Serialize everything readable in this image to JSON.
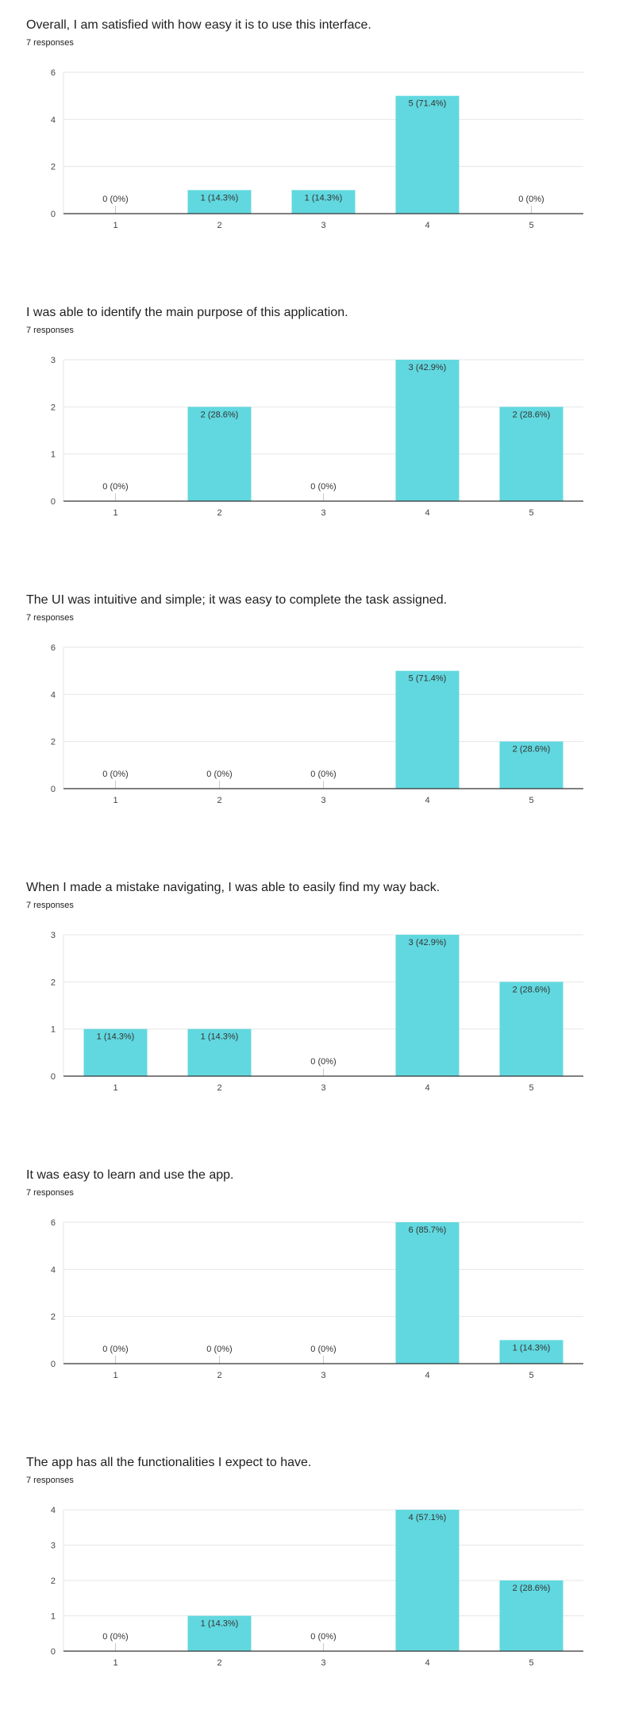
{
  "accent_color": "#61d8df",
  "charts": [
    {
      "title": "Overall, I am satisfied with how easy it is to use this interface.",
      "responses": "7 responses",
      "chart_data": {
        "type": "bar",
        "categories": [
          "1",
          "2",
          "3",
          "4",
          "5"
        ],
        "values": [
          0,
          1,
          1,
          5,
          0
        ],
        "labels": [
          "0 (0%)",
          "1 (14.3%)",
          "1 (14.3%)",
          "5 (71.4%)",
          "0 (0%)"
        ],
        "yticks": [
          "0",
          "2",
          "4",
          "6"
        ],
        "ylim": [
          0,
          6
        ],
        "grid": true
      }
    },
    {
      "title": "I was able to identify the main purpose of this application.",
      "responses": "7 responses",
      "chart_data": {
        "type": "bar",
        "categories": [
          "1",
          "2",
          "3",
          "4",
          "5"
        ],
        "values": [
          0,
          2,
          0,
          3,
          2
        ],
        "labels": [
          "0 (0%)",
          "2 (28.6%)",
          "0 (0%)",
          "3 (42.9%)",
          "2 (28.6%)"
        ],
        "yticks": [
          "0",
          "1",
          "2",
          "3"
        ],
        "ylim": [
          0,
          3
        ],
        "grid": true
      }
    },
    {
      "title": "The UI was intuitive and simple; it was easy to complete the task assigned.",
      "responses": "7 responses",
      "chart_data": {
        "type": "bar",
        "categories": [
          "1",
          "2",
          "3",
          "4",
          "5"
        ],
        "values": [
          0,
          0,
          0,
          5,
          2
        ],
        "labels": [
          "0 (0%)",
          "0 (0%)",
          "0 (0%)",
          "5 (71.4%)",
          "2 (28.6%)"
        ],
        "yticks": [
          "0",
          "2",
          "4",
          "6"
        ],
        "ylim": [
          0,
          6
        ],
        "grid": true
      }
    },
    {
      "title": "When I made a mistake navigating, I was able to easily find my way back.",
      "responses": "7 responses",
      "chart_data": {
        "type": "bar",
        "categories": [
          "1",
          "2",
          "3",
          "4",
          "5"
        ],
        "values": [
          1,
          1,
          0,
          3,
          2
        ],
        "labels": [
          "1 (14.3%)",
          "1 (14.3%)",
          "0 (0%)",
          "3 (42.9%)",
          "2 (28.6%)"
        ],
        "yticks": [
          "0",
          "1",
          "2",
          "3"
        ],
        "ylim": [
          0,
          3
        ],
        "grid": true
      }
    },
    {
      "title": "It was easy to learn and use the app.",
      "responses": "7 responses",
      "chart_data": {
        "type": "bar",
        "categories": [
          "1",
          "2",
          "3",
          "4",
          "5"
        ],
        "values": [
          0,
          0,
          0,
          6,
          1
        ],
        "labels": [
          "0 (0%)",
          "0 (0%)",
          "0 (0%)",
          "6 (85.7%)",
          "1 (14.3%)"
        ],
        "yticks": [
          "0",
          "2",
          "4",
          "6"
        ],
        "ylim": [
          0,
          6
        ],
        "grid": true
      }
    },
    {
      "title": "The app has all the functionalities I expect to have.",
      "responses": "7 responses",
      "chart_data": {
        "type": "bar",
        "categories": [
          "1",
          "2",
          "3",
          "4",
          "5"
        ],
        "values": [
          0,
          1,
          0,
          4,
          2
        ],
        "labels": [
          "0 (0%)",
          "1 (14.3%)",
          "0 (0%)",
          "4 (57.1%)",
          "2 (28.6%)"
        ],
        "yticks": [
          "0",
          "1",
          "2",
          "3",
          "4"
        ],
        "ylim": [
          0,
          4
        ],
        "grid": true
      }
    }
  ]
}
